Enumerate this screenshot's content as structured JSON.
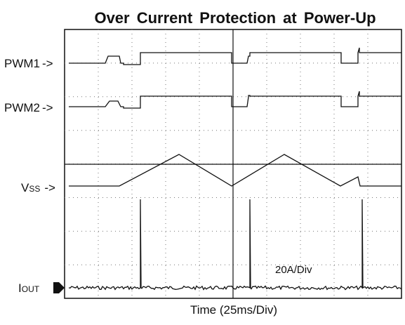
{
  "title": "Over Current Protection at Power-Up",
  "channels": [
    {
      "main": "PWM1",
      "arrow": "->"
    },
    {
      "main": "PWM2",
      "arrow": "->"
    },
    {
      "main": "V",
      "sub": "SS",
      "arrow": "->"
    },
    {
      "main": "I",
      "sub": "OUT"
    }
  ],
  "annotation": "20A/Div",
  "x_label": "Time (25ms/Div)"
}
